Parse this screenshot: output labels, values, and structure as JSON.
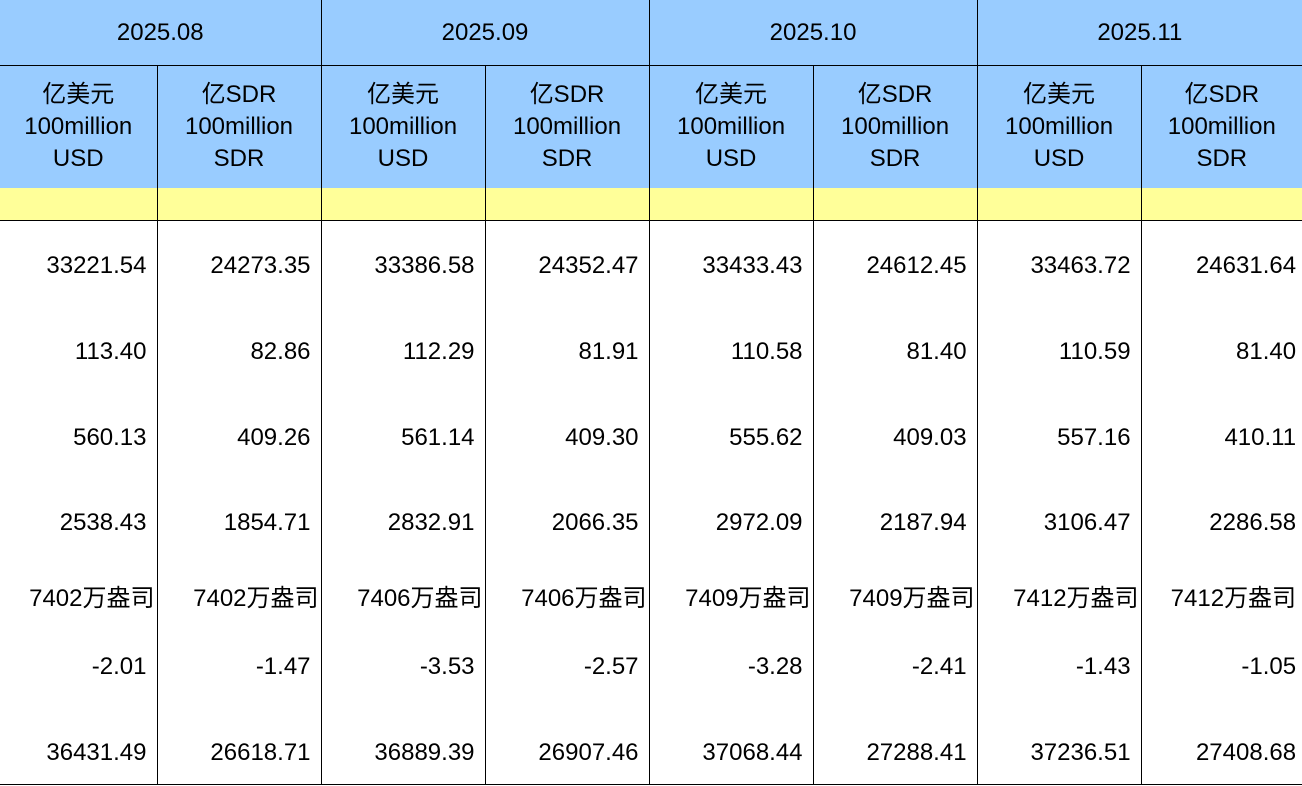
{
  "colors": {
    "header_bg": "#99ccff",
    "subheader_bg": "#ffff99"
  },
  "months": [
    "2025.08",
    "2025.09",
    "2025.10",
    "2025.11"
  ],
  "units": {
    "usd": [
      "亿美元",
      "100million",
      "USD"
    ],
    "sdr": [
      "亿SDR",
      "100million",
      "SDR"
    ]
  },
  "rows": [
    [
      "33221.54",
      "24273.35",
      "33386.58",
      "24352.47",
      "33433.43",
      "24612.45",
      "33463.72",
      "24631.64"
    ],
    [
      "113.40",
      "82.86",
      "112.29",
      "81.91",
      "110.58",
      "81.40",
      "110.59",
      "81.40"
    ],
    [
      "560.13",
      "409.26",
      "561.14",
      "409.30",
      "555.62",
      "409.03",
      "557.16",
      "410.11"
    ],
    [
      "2538.43",
      "1854.71",
      "2832.91",
      "2066.35",
      "2972.09",
      "2187.94",
      "3106.47",
      "2286.58"
    ],
    [
      "7402万盎司",
      "7402万盎司",
      "7406万盎司",
      "7406万盎司",
      "7409万盎司",
      "7409万盎司",
      "7412万盎司",
      "7412万盎司"
    ],
    [
      "-2.01",
      "-1.47",
      "-3.53",
      "-2.57",
      "-3.28",
      "-2.41",
      "-1.43",
      "-1.05"
    ],
    [
      "36431.49",
      "26618.71",
      "36889.39",
      "26907.46",
      "37068.44",
      "27288.41",
      "37236.51",
      "27408.68"
    ]
  ]
}
